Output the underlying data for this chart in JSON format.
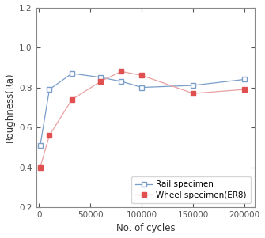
{
  "rail_x": [
    1000,
    10000,
    32000,
    60000,
    80000,
    100000,
    150000,
    200000
  ],
  "rail_y": [
    0.51,
    0.79,
    0.87,
    0.85,
    0.83,
    0.8,
    0.81,
    0.84
  ],
  "wheel_x": [
    1000,
    10000,
    32000,
    60000,
    80000,
    100000,
    150000,
    200000
  ],
  "wheel_y": [
    0.4,
    0.56,
    0.74,
    0.83,
    0.88,
    0.86,
    0.77,
    0.79
  ],
  "rail_color": "#7a9ec8",
  "wheel_color": "#e05050",
  "wheel_line_color": "#e8a0a0",
  "rail_label": "Rail specimen",
  "wheel_label": "Wheel specimen(ER8)",
  "xlabel": "No. of cycles",
  "ylabel": "Roughness(Ra)",
  "ylim": [
    0.2,
    1.2
  ],
  "xlim": [
    -3000,
    210000
  ],
  "yticks": [
    0.2,
    0.4,
    0.6,
    0.8,
    1.0,
    1.2
  ],
  "xticks": [
    0,
    50000,
    100000,
    150000,
    200000
  ],
  "xtick_labels": [
    "0",
    "50000",
    "100000",
    "150000",
    "200000"
  ],
  "legend_loc": "lower right",
  "axis_fontsize": 8.5,
  "tick_fontsize": 7.5,
  "legend_fontsize": 7.5
}
